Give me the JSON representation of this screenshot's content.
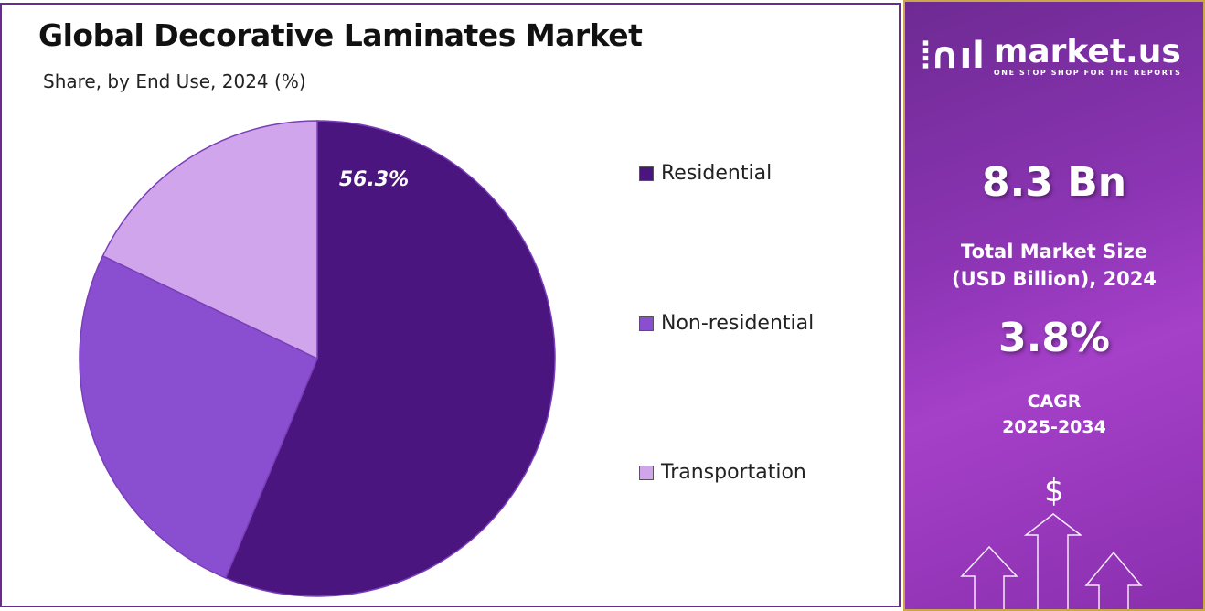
{
  "chart_data": {
    "type": "pie",
    "title": "Global Decorative Laminates Market",
    "subtitle": "Share, by End Use, 2024 (%)",
    "categories": [
      "Residential",
      "Non-residential",
      "Transportation"
    ],
    "values": [
      56.3,
      25.8,
      17.9
    ],
    "colors": [
      "#4b1580",
      "#8a4fd0",
      "#d0a5ec"
    ],
    "data_labels": [
      "56.3%",
      "",
      ""
    ],
    "legend_position": "right",
    "start": "top",
    "direction": "clockwise"
  },
  "panel": {
    "brand": "market.us",
    "tagline": "ONE STOP SHOP FOR THE REPORTS",
    "market_size": "8.3 Bn",
    "market_size_label_1": "Total Market Size",
    "market_size_label_2": "(USD Billion), 2024",
    "cagr": "3.8%",
    "cagr_label_1": "CAGR",
    "cagr_label_2": "2025-2034",
    "currency_symbol": "$"
  }
}
